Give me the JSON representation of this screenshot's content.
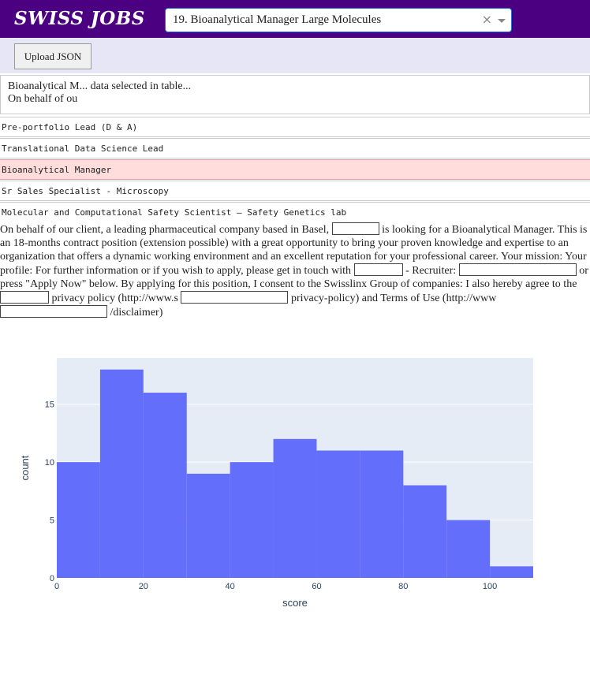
{
  "header": {
    "brand": "SWISS JOBS",
    "select_value": "19. Bioanalytical Manager Large Molecules",
    "clear_icon": "×"
  },
  "toolbar": {
    "upload_label": "Upload JSON"
  },
  "info": {
    "line1": "Bioanalytical M... data selected in table...",
    "line2": "On behalf of ou"
  },
  "jobs": [
    {
      "title": "Pre-portfolio Lead (D & A)",
      "selected": false
    },
    {
      "title": "Translational Data Science Lead",
      "selected": false
    },
    {
      "title": "Bioanalytical Manager",
      "selected": true
    },
    {
      "title": "Sr Sales Specialist - Microscopy",
      "selected": false
    },
    {
      "title": "Molecular and Computational Safety Scientist – Safety Genetics lab",
      "selected": false
    }
  ],
  "description": {
    "p1": "On behalf of our client, a leading pharmaceutical company based in Basel,",
    "p2": "is looking for a Bioanalytical Manager. This is an 18-months contract position (extension possible) with a great opportunity to bring your proven knowledge and expertise to an organization that offers a dynamic working environment and an excellent reputation for your professional career. Your mission: Your profile: For further information or if you wish to apply, please get in touch with",
    "p3": "- Recruiter:",
    "p4": "or press \"Apply Now\" below. By applying for this position, I consent to the Swisslinx Group of companies: I also hereby agree to the",
    "p5": "privacy policy (http://www.s",
    "p6": "privacy-policy) and Terms of Use (http://www",
    "p7": "/disclaimer)"
  },
  "chart_data": {
    "type": "bar",
    "xlabel": "score",
    "ylabel": "count",
    "bins": [
      [
        0,
        10
      ],
      [
        10,
        20
      ],
      [
        20,
        30
      ],
      [
        30,
        40
      ],
      [
        40,
        50
      ],
      [
        50,
        60
      ],
      [
        60,
        70
      ],
      [
        70,
        80
      ],
      [
        80,
        90
      ],
      [
        90,
        100
      ],
      [
        100,
        110
      ]
    ],
    "values": [
      10,
      18,
      16,
      9,
      10,
      12,
      11,
      11,
      8,
      5,
      1
    ],
    "xlim": [
      0,
      110
    ],
    "ylim": [
      0,
      19
    ],
    "xticks": [
      0,
      20,
      40,
      60,
      80,
      100
    ],
    "yticks": [
      0,
      5,
      10,
      15
    ],
    "bar_color": "#636efa",
    "plot_bg": "#e5ecf6",
    "grid": true
  }
}
